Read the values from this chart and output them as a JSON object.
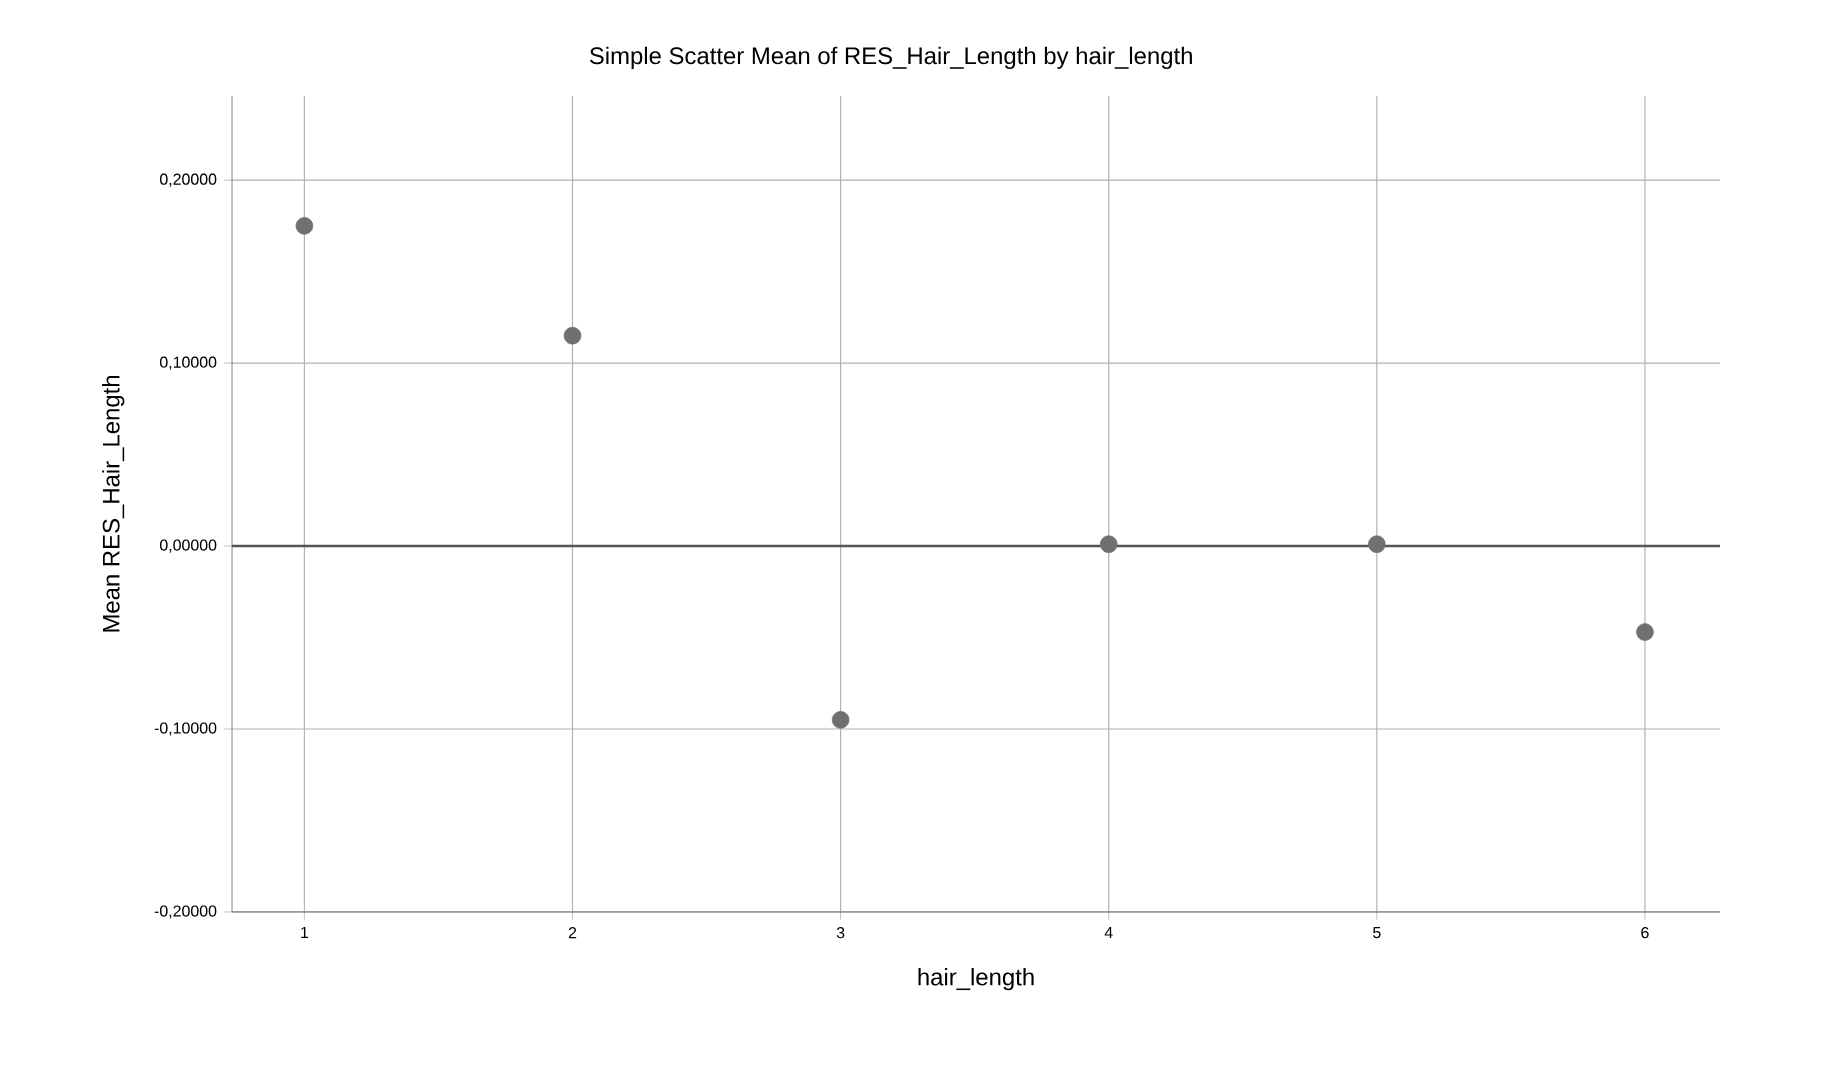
{
  "chart_data": {
    "type": "scatter",
    "title": "Simple Scatter Mean of RES_Hair_Length by hair_length",
    "xlabel": "hair_length",
    "ylabel": "Mean RES_Hair_Length",
    "x": [
      1,
      2,
      3,
      4,
      5,
      6
    ],
    "series": [
      {
        "color": "#707070",
        "values": [
          0.175,
          0.115,
          -0.095,
          0.001,
          0.001,
          -0.047
        ]
      }
    ],
    "xlim": [
      0.73,
      6.28
    ],
    "xticks": [
      1,
      2,
      3,
      4,
      5,
      6
    ],
    "ylim": [
      -0.2,
      0.246
    ],
    "yticks": [
      {
        "value": -0.2,
        "label": "-0,20000"
      },
      {
        "value": -0.1,
        "label": "-0,10000"
      },
      {
        "value": 0,
        "label": "0,00000"
      },
      {
        "value": 0.1,
        "label": "0,10000"
      },
      {
        "value": 0.2,
        "label": "0,20000"
      }
    ],
    "ref_lines": [
      {
        "axis": "y",
        "value": 0,
        "color": "#555555"
      }
    ],
    "grid": true,
    "marker": "circle"
  }
}
